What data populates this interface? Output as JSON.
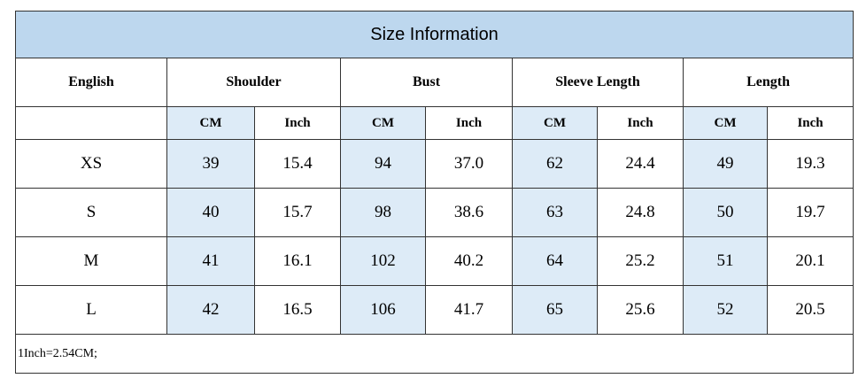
{
  "title": "Size Information",
  "header": {
    "label": "English",
    "groups": [
      "Shoulder",
      "Bust",
      "Sleeve Length",
      "Length"
    ]
  },
  "units": [
    "CM",
    "Inch",
    "CM",
    "Inch",
    "CM",
    "Inch",
    "CM",
    "Inch"
  ],
  "rows": [
    [
      "XS",
      "39",
      "15.4",
      "94",
      "37.0",
      "62",
      "24.4",
      "49",
      "19.3"
    ],
    [
      "S",
      "40",
      "15.7",
      "98",
      "38.6",
      "63",
      "24.8",
      "50",
      "19.7"
    ],
    [
      "M",
      "41",
      "16.1",
      "102",
      "40.2",
      "64",
      "25.2",
      "51",
      "20.1"
    ],
    [
      "L",
      "42",
      "16.5",
      "106",
      "41.7",
      "65",
      "25.6",
      "52",
      "20.5"
    ]
  ],
  "note": "1Inch=2.54CM;"
}
